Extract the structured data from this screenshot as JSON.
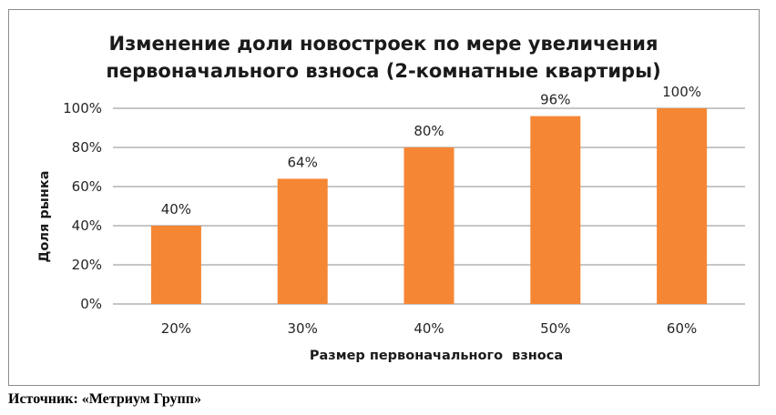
{
  "chart_data": {
    "type": "bar",
    "title_lines": [
      "Изменение доли новостроек по мере увеличения",
      "первоначального взноса (2-комнатные квартиры)"
    ],
    "categories": [
      "20%",
      "30%",
      "40%",
      "50%",
      "60%"
    ],
    "values": [
      40,
      64,
      80,
      96,
      100
    ],
    "data_labels": [
      "40%",
      "64%",
      "80%",
      "96%",
      "100%"
    ],
    "y_ticks": [
      "0%",
      "20%",
      "40%",
      "60%",
      "80%",
      "100%"
    ],
    "xlabel": "Размер первоначального  взноса",
    "ylabel": "Доля рынка",
    "ylim": [
      0,
      100
    ],
    "grid": true,
    "legend": "none",
    "bar_color": "#F58634"
  },
  "source_note": "Источник: «Метриум Групп»"
}
